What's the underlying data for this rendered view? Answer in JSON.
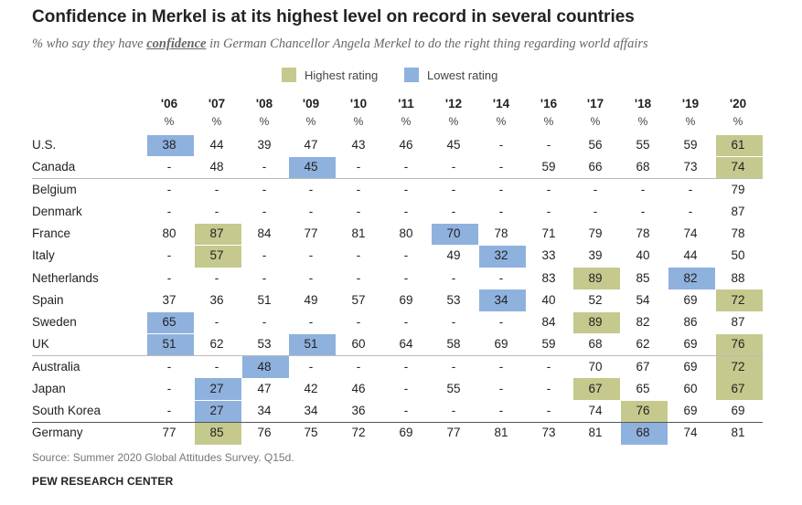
{
  "title": "Confidence in Merkel is at its highest level on record in several countries",
  "subtitle": {
    "before": "% who say they have ",
    "keyword": "confidence",
    "after": " in German Chancellor Angela Merkel to do the right thing regarding world affairs"
  },
  "legend": {
    "highest": {
      "label": "Highest rating",
      "color": "#c5c98d"
    },
    "lowest": {
      "label": "Lowest rating",
      "color": "#8fb1dd"
    }
  },
  "chart_data": {
    "type": "table",
    "columns": [
      "'06",
      "'07",
      "'08",
      "'09",
      "'10",
      "'11",
      "'12",
      "'14",
      "'16",
      "'17",
      "'18",
      "'19",
      "'20"
    ],
    "unit": "%",
    "groups": [
      {
        "rows": [
          {
            "country": "U.S.",
            "values": [
              "38",
              "44",
              "39",
              "47",
              "43",
              "46",
              "45",
              "-",
              "-",
              "56",
              "55",
              "59",
              "61"
            ],
            "highest": [
              12
            ],
            "lowest": [
              0
            ]
          },
          {
            "country": "Canada",
            "values": [
              "-",
              "48",
              "-",
              "45",
              "-",
              "-",
              "-",
              "-",
              "59",
              "66",
              "68",
              "73",
              "74"
            ],
            "highest": [
              12
            ],
            "lowest": [
              3
            ]
          }
        ]
      },
      {
        "rows": [
          {
            "country": "Belgium",
            "values": [
              "-",
              "-",
              "-",
              "-",
              "-",
              "-",
              "-",
              "-",
              "-",
              "-",
              "-",
              "-",
              "79"
            ],
            "highest": [],
            "lowest": []
          },
          {
            "country": "Denmark",
            "values": [
              "-",
              "-",
              "-",
              "-",
              "-",
              "-",
              "-",
              "-",
              "-",
              "-",
              "-",
              "-",
              "87"
            ],
            "highest": [],
            "lowest": []
          },
          {
            "country": "France",
            "values": [
              "80",
              "87",
              "84",
              "77",
              "81",
              "80",
              "70",
              "78",
              "71",
              "79",
              "78",
              "74",
              "78"
            ],
            "highest": [
              1
            ],
            "lowest": [
              6
            ]
          },
          {
            "country": "Italy",
            "values": [
              "-",
              "57",
              "-",
              "-",
              "-",
              "-",
              "49",
              "32",
              "33",
              "39",
              "40",
              "44",
              "50"
            ],
            "highest": [
              1
            ],
            "lowest": [
              7
            ]
          },
          {
            "country": "Netherlands",
            "values": [
              "-",
              "-",
              "-",
              "-",
              "-",
              "-",
              "-",
              "-",
              "83",
              "89",
              "85",
              "82",
              "88"
            ],
            "highest": [
              9
            ],
            "lowest": [
              11
            ]
          },
          {
            "country": "Spain",
            "values": [
              "37",
              "36",
              "51",
              "49",
              "57",
              "69",
              "53",
              "34",
              "40",
              "52",
              "54",
              "69",
              "72"
            ],
            "highest": [
              12
            ],
            "lowest": [
              7
            ]
          },
          {
            "country": "Sweden",
            "values": [
              "65",
              "-",
              "-",
              "-",
              "-",
              "-",
              "-",
              "-",
              "84",
              "89",
              "82",
              "86",
              "87"
            ],
            "highest": [
              9
            ],
            "lowest": [
              0
            ]
          },
          {
            "country": "UK",
            "values": [
              "51",
              "62",
              "53",
              "51",
              "60",
              "64",
              "58",
              "69",
              "59",
              "68",
              "62",
              "69",
              "76"
            ],
            "highest": [
              12
            ],
            "lowest": [
              0,
              3
            ]
          }
        ]
      },
      {
        "rows": [
          {
            "country": "Australia",
            "values": [
              "-",
              "-",
              "48",
              "-",
              "-",
              "-",
              "-",
              "-",
              "-",
              "70",
              "67",
              "69",
              "72"
            ],
            "highest": [
              12
            ],
            "lowest": [
              2
            ]
          },
          {
            "country": "Japan",
            "values": [
              "-",
              "27",
              "47",
              "42",
              "46",
              "-",
              "55",
              "-",
              "-",
              "67",
              "65",
              "60",
              "67"
            ],
            "highest": [
              9,
              12
            ],
            "lowest": [
              1
            ]
          },
          {
            "country": "South Korea",
            "values": [
              "-",
              "27",
              "34",
              "34",
              "36",
              "-",
              "-",
              "-",
              "-",
              "74",
              "76",
              "69",
              "69"
            ],
            "highest": [
              10
            ],
            "lowest": [
              1
            ]
          }
        ]
      },
      {
        "rows": [
          {
            "country": "Germany",
            "values": [
              "77",
              "85",
              "76",
              "75",
              "72",
              "69",
              "77",
              "81",
              "73",
              "81",
              "68",
              "74",
              "81"
            ],
            "highest": [
              1
            ],
            "lowest": [
              10
            ]
          }
        ]
      }
    ]
  },
  "source": "Source: Summer 2020 Global Attitudes Survey. Q15d.",
  "brand": "PEW RESEARCH CENTER"
}
